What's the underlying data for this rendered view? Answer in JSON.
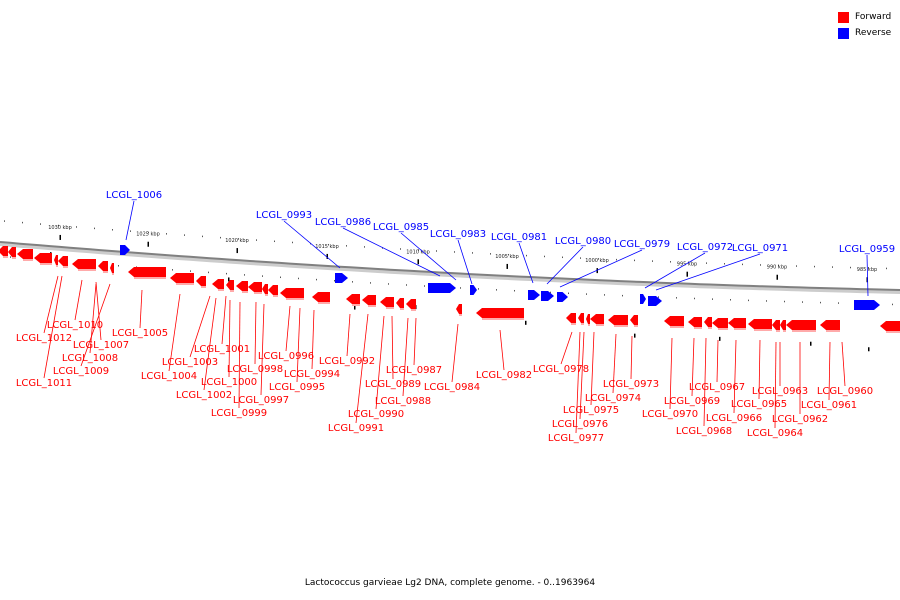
{
  "legend": {
    "forward_label": "Forward",
    "reverse_label": "Reverse",
    "forward_color": "#ff0000",
    "reverse_color": "#0000ff"
  },
  "caption": "Lactococcus garvieae Lg2 DNA, complete genome. - 0..1963964",
  "colors": {
    "line": "#0000ff",
    "forward": "#ff0000",
    "reverse": "#0000ff",
    "backbone": "#808080"
  },
  "ruler": [
    "1030 kbp",
    "1025 kbp",
    "1020 kbp",
    "1015 kbp",
    "1010 kbp",
    "1005 kbp",
    "1000 kbp",
    "995 kbp",
    "990 kbp",
    "985 kbp"
  ],
  "reverse_genes": [
    "LCGL_1006",
    "LCGL_0993",
    "LCGL_0986",
    "LCGL_0985",
    "LCGL_0983",
    "LCGL_0981",
    "LCGL_0980",
    "LCGL_0979",
    "LCGL_0972",
    "LCGL_0971",
    "LCGL_0959"
  ],
  "forward_genes": [
    "LCGL_1010",
    "LCGL_1012",
    "LCGL_1007",
    "LCGL_1008",
    "LCGL_1009",
    "LCGL_1011",
    "LCGL_1005",
    "LCGL_1001",
    "LCGL_1003",
    "LCGL_1004",
    "LCGL_0998",
    "LCGL_1000",
    "LCGL_1002",
    "LCGL_0996",
    "LCGL_0997",
    "LCGL_0999",
    "LCGL_0994",
    "LCGL_0995",
    "LCGL_0992",
    "LCGL_0989",
    "LCGL_0990",
    "LCGL_0991",
    "LCGL_0987",
    "LCGL_0988",
    "LCGL_0984",
    "LCGL_0982",
    "LCGL_0978",
    "LCGL_0975",
    "LCGL_0976",
    "LCGL_0977",
    "LCGL_0973",
    "LCGL_0974",
    "LCGL_0970",
    "LCGL_0969",
    "LCGL_0968",
    "LCGL_0967",
    "LCGL_0966",
    "LCGL_0965",
    "LCGL_0964",
    "LCGL_0963",
    "LCGL_0962",
    "LCGL_0960",
    "LCGL_0961"
  ]
}
